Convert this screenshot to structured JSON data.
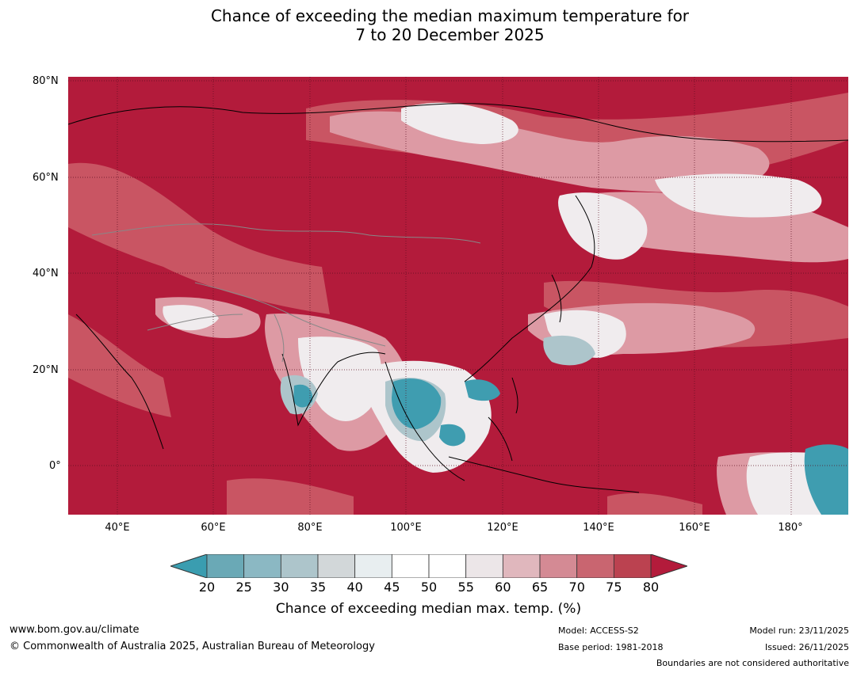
{
  "title_line1": "Chance of exceeding the median maximum temperature for",
  "title_line2": "7 to 20 December 2025",
  "lat_labels": [
    "80°N",
    "60°N",
    "40°N",
    "20°N",
    "0°"
  ],
  "lon_labels": [
    "40°E",
    "60°E",
    "80°E",
    "100°E",
    "120°E",
    "140°E",
    "160°E",
    "180°"
  ],
  "colorbar": {
    "ticks": [
      "20",
      "25",
      "30",
      "35",
      "40",
      "45",
      "50",
      "55",
      "60",
      "65",
      "70",
      "75",
      "80"
    ],
    "colors": [
      "#3a9db0",
      "#6aa9b6",
      "#8bb8c3",
      "#adc5cb",
      "#d2d7d9",
      "#e8eef0",
      "#ffffff",
      "#ffffff",
      "#ece6e8",
      "#e0b7bd",
      "#d48a94",
      "#c96570",
      "#bb4250",
      "#b31b3b"
    ],
    "label": "Chance of exceeding median max. temp. (%)"
  },
  "footer": {
    "website": "www.bom.gov.au/climate",
    "copyright": "© Commonwealth of Australia 2025, Australian Bureau of Meteorology",
    "model": "Model: ACCESS-S2",
    "base_period": "Base period: 1981-2018",
    "model_run": "Model run: 23/11/2025",
    "issued": "Issued: 26/11/2025",
    "boundaries": "Boundaries are not considered authoritative"
  }
}
